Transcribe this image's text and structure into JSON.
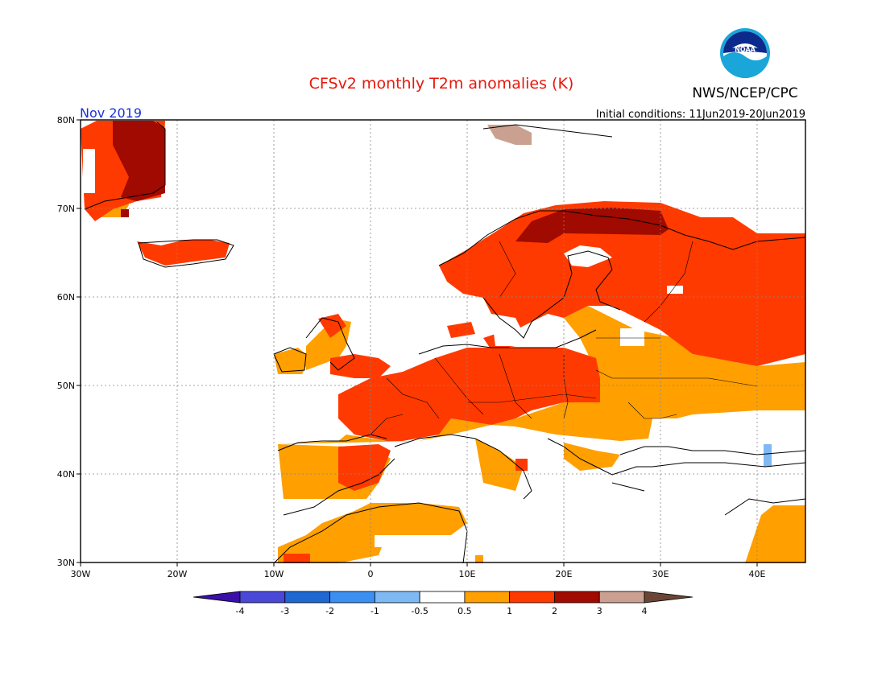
{
  "header": {
    "title": "CFSv2 monthly T2m anomalies (K)",
    "month": "Nov 2019",
    "initial_conditions": "Initial conditions: 11Jun2019-20Jun2019",
    "agency": "NWS/NCEP/CPC",
    "logo_text": "NOAA"
  },
  "map": {
    "lon_range": [
      -30,
      45
    ],
    "lat_range": [
      30,
      80
    ],
    "x_ticks": [
      "30W",
      "20W",
      "10W",
      "0",
      "10E",
      "20E",
      "30E",
      "40E"
    ],
    "y_ticks": [
      "30N",
      "40N",
      "50N",
      "60N",
      "70N",
      "80N"
    ]
  },
  "legend": {
    "labels": [
      "-4",
      "-3",
      "-2",
      "-1",
      "-0.5",
      "0.5",
      "1",
      "2",
      "3",
      "4"
    ],
    "colors": [
      "#3b0fa8",
      "#4a48d6",
      "#1f67d1",
      "#3b8ff0",
      "#7fb9f4",
      "#ffffff",
      "#ff9f00",
      "#ff3a00",
      "#a00a00",
      "#caa190",
      "#6b4536"
    ]
  }
}
